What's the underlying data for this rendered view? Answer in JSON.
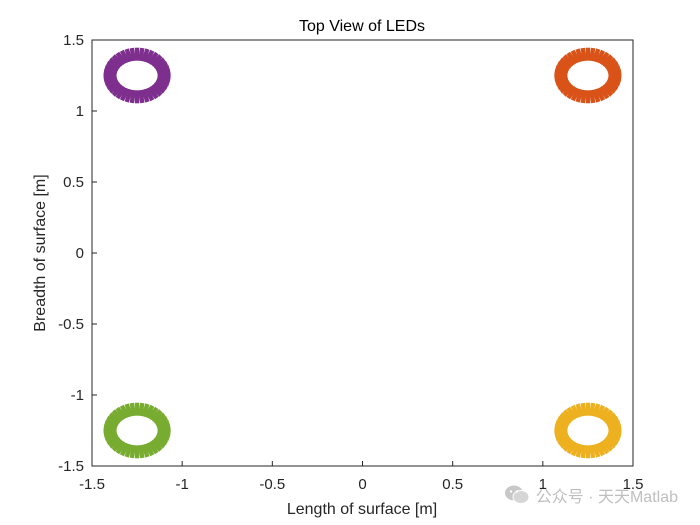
{
  "chart_data": {
    "type": "scatter",
    "title": "Top View of LEDs",
    "xlabel": "Length of surface [m]",
    "ylabel": "Breadth of surface [m]",
    "xlim": [
      -1.5,
      1.5
    ],
    "ylim": [
      -1.5,
      1.5
    ],
    "xticks": [
      -1.5,
      -1,
      -0.5,
      0,
      0.5,
      1,
      1.5
    ],
    "yticks": [
      -1.5,
      -1,
      -0.5,
      0,
      0.5,
      1,
      1.5
    ],
    "xtick_labels": [
      "-1.5",
      "-1",
      "-0.5",
      "0",
      "0.5",
      "1",
      "1.5"
    ],
    "ytick_labels": [
      "-1.5",
      "-1",
      "-0.5",
      "0",
      "0.5",
      "1",
      "1.5"
    ],
    "grid": false,
    "series": [
      {
        "center": [
          -1.25,
          1.25
        ],
        "radius": 0.15,
        "color": "#7E2F8E"
      },
      {
        "center": [
          1.25,
          1.25
        ],
        "radius": 0.15,
        "color": "#D95319"
      },
      {
        "center": [
          -1.25,
          -1.25
        ],
        "radius": 0.15,
        "color": "#77AC30"
      },
      {
        "center": [
          1.25,
          -1.25
        ],
        "radius": 0.15,
        "color": "#EDB120"
      }
    ],
    "points_per_ring": 40
  },
  "watermark": {
    "text": "公众号 · 天天Matlab",
    "icon": "wechat-icon"
  }
}
